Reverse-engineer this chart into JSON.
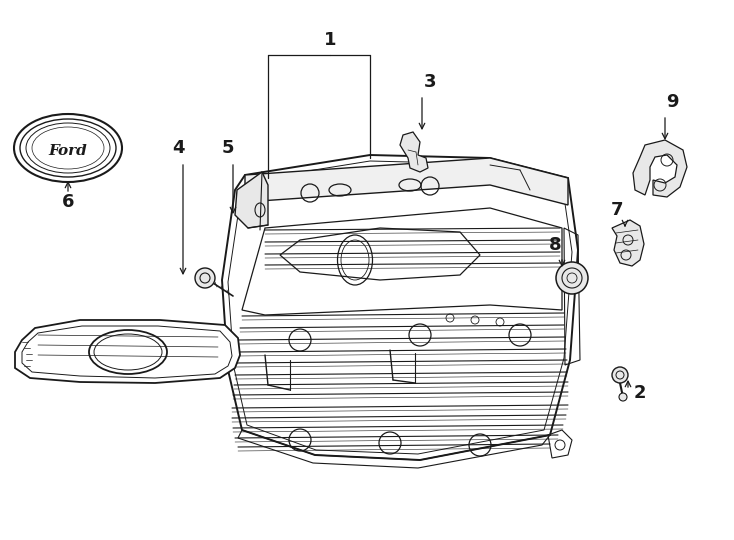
{
  "background_color": "#ffffff",
  "line_color": "#1a1a1a",
  "fig_width": 7.34,
  "fig_height": 5.4,
  "dpi": 100,
  "label_fs": 13
}
